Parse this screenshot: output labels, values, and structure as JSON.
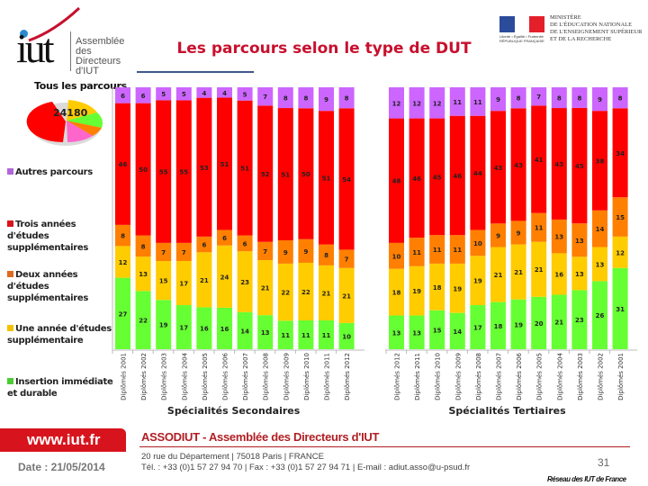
{
  "header": {
    "logo_mark": "iut",
    "logo_lines": [
      "Assemblée",
      "des Directeurs",
      "d'IUT"
    ],
    "title": "Les parcours selon le type de DUT",
    "ministry_lines": [
      "MINISTÈRE",
      "DE L'ÉDUCATION NATIONALE",
      "DE L'ENSEIGNEMENT SUPÉRIEUR",
      "ET DE LA RECHERCHE"
    ],
    "flag_caption": "Liberté • Égalité • Fraternité RÉPUBLIQUE FRANÇAISE"
  },
  "pie": {
    "title": "Tous les parcours",
    "total_label": "24180"
  },
  "chart_data": {
    "type": "bar",
    "stacked": "percent",
    "title": "Les parcours selon le type de DUT",
    "groups": [
      {
        "name": "Spécialités Secondaires",
        "categories": [
          "Diplômés 2001",
          "Diplômés 2002",
          "Diplômés 2003",
          "Diplômés 2004",
          "Diplômés 2005",
          "Diplômés 2006",
          "Diplômés 2007",
          "Diplômés 2008",
          "Diplômés 2009",
          "Diplômés 2010",
          "Diplômés 2011",
          "Diplômés 2012"
        ],
        "series": [
          {
            "name": "Insertion immédiate et durable",
            "values": [
              27,
              22,
              19,
              17,
              16,
              16,
              14,
              13,
              11,
              11,
              11,
              10
            ]
          },
          {
            "name": "Une année d'études supplémentaire",
            "values": [
              12,
              13,
              15,
              17,
              21,
              24,
              23,
              21,
              22,
              22,
              21,
              21
            ]
          },
          {
            "name": "Deux années d'études supplémentaires",
            "values": [
              8,
              8,
              7,
              7,
              6,
              6,
              6,
              7,
              9,
              9,
              8,
              7
            ]
          },
          {
            "name": "Trois années d'études supplémentaires",
            "values": [
              46,
              50,
              55,
              55,
              53,
              51,
              51,
              52,
              51,
              50,
              51,
              54
            ]
          },
          {
            "name": "Autres parcours",
            "values": [
              6,
              6,
              5,
              5,
              4,
              4,
              5,
              7,
              8,
              8,
              9,
              8
            ]
          }
        ]
      },
      {
        "name": "Spécialités Tertiaires",
        "categories": [
          "Diplômés 2012",
          "Diplômés 2011",
          "Diplômés 2010",
          "Diplômés 2009",
          "Diplômés 2008",
          "Diplômés 2007",
          "Diplômés 2006",
          "Diplômés 2005",
          "Diplômés 2004",
          "Diplômés 2003",
          "Diplômés 2002",
          "Diplômés 2001"
        ],
        "series": [
          {
            "name": "Insertion immédiate et durable",
            "values": [
              13,
              13,
              15,
              14,
              17,
              18,
              19,
              20,
              21,
              23,
              26,
              31
            ]
          },
          {
            "name": "Une année d'études supplémentaire",
            "values": [
              18,
              19,
              18,
              19,
              19,
              21,
              21,
              21,
              16,
              13,
              13,
              12
            ]
          },
          {
            "name": "Deux années d'études supplémentaires",
            "values": [
              10,
              11,
              11,
              11,
              10,
              9,
              9,
              11,
              13,
              13,
              14,
              15
            ]
          },
          {
            "name": "Trois années d'études supplémentaires",
            "values": [
              48,
              46,
              45,
              46,
              44,
              43,
              43,
              41,
              43,
              45,
              38,
              34
            ]
          },
          {
            "name": "Autres parcours",
            "values": [
              12,
              12,
              12,
              11,
              11,
              9,
              8,
              7,
              8,
              8,
              9,
              8
            ]
          }
        ]
      }
    ],
    "legend": [
      {
        "name": "Autres parcours",
        "color": "#cc66ff"
      },
      {
        "name": "Trois années d'études supplémentaires",
        "color": "#ff0000"
      },
      {
        "name": "Deux années d'études supplémentaires",
        "color": "#ff7f00"
      },
      {
        "name": "Une année d'études supplémentaire",
        "color": "#ffcc00"
      },
      {
        "name": "Insertion immédiate et durable",
        "color": "#66ff33"
      }
    ],
    "legend_position": "left",
    "series_colors": {
      "Insertion immédiate et durable": "#66ff33",
      "Une année d'études supplémentaire": "#ffcc00",
      "Deux années d'études supplémentaires": "#ff7f00",
      "Trois années d'études supplémentaires": "#ff0000",
      "Autres parcours": "#cc66ff"
    },
    "xlabel_groups": [
      "Spécialités Secondaires",
      "Spécialités Tertiaires"
    ],
    "ylabel": "",
    "ylim": [
      0,
      100
    ],
    "grid": false,
    "pie_inset": {
      "title": "Tous les parcours",
      "total": 24180
    }
  },
  "footer": {
    "website": "www.iut.fr",
    "date": "Date : 21/05/2014",
    "association": "ASSODIUT - Assemblée des Directeurs d'IUT",
    "address": "20 rue du Département | 75018 Paris | FRANCE",
    "contact": "Tél. : +33 (0)1 57 27 94 70 | Fax : +33 (0)1 57 27 94 71 | E-mail : adiut.asso@u-psud.fr",
    "page_number": "31",
    "network": "Réseau des IUT de France"
  }
}
